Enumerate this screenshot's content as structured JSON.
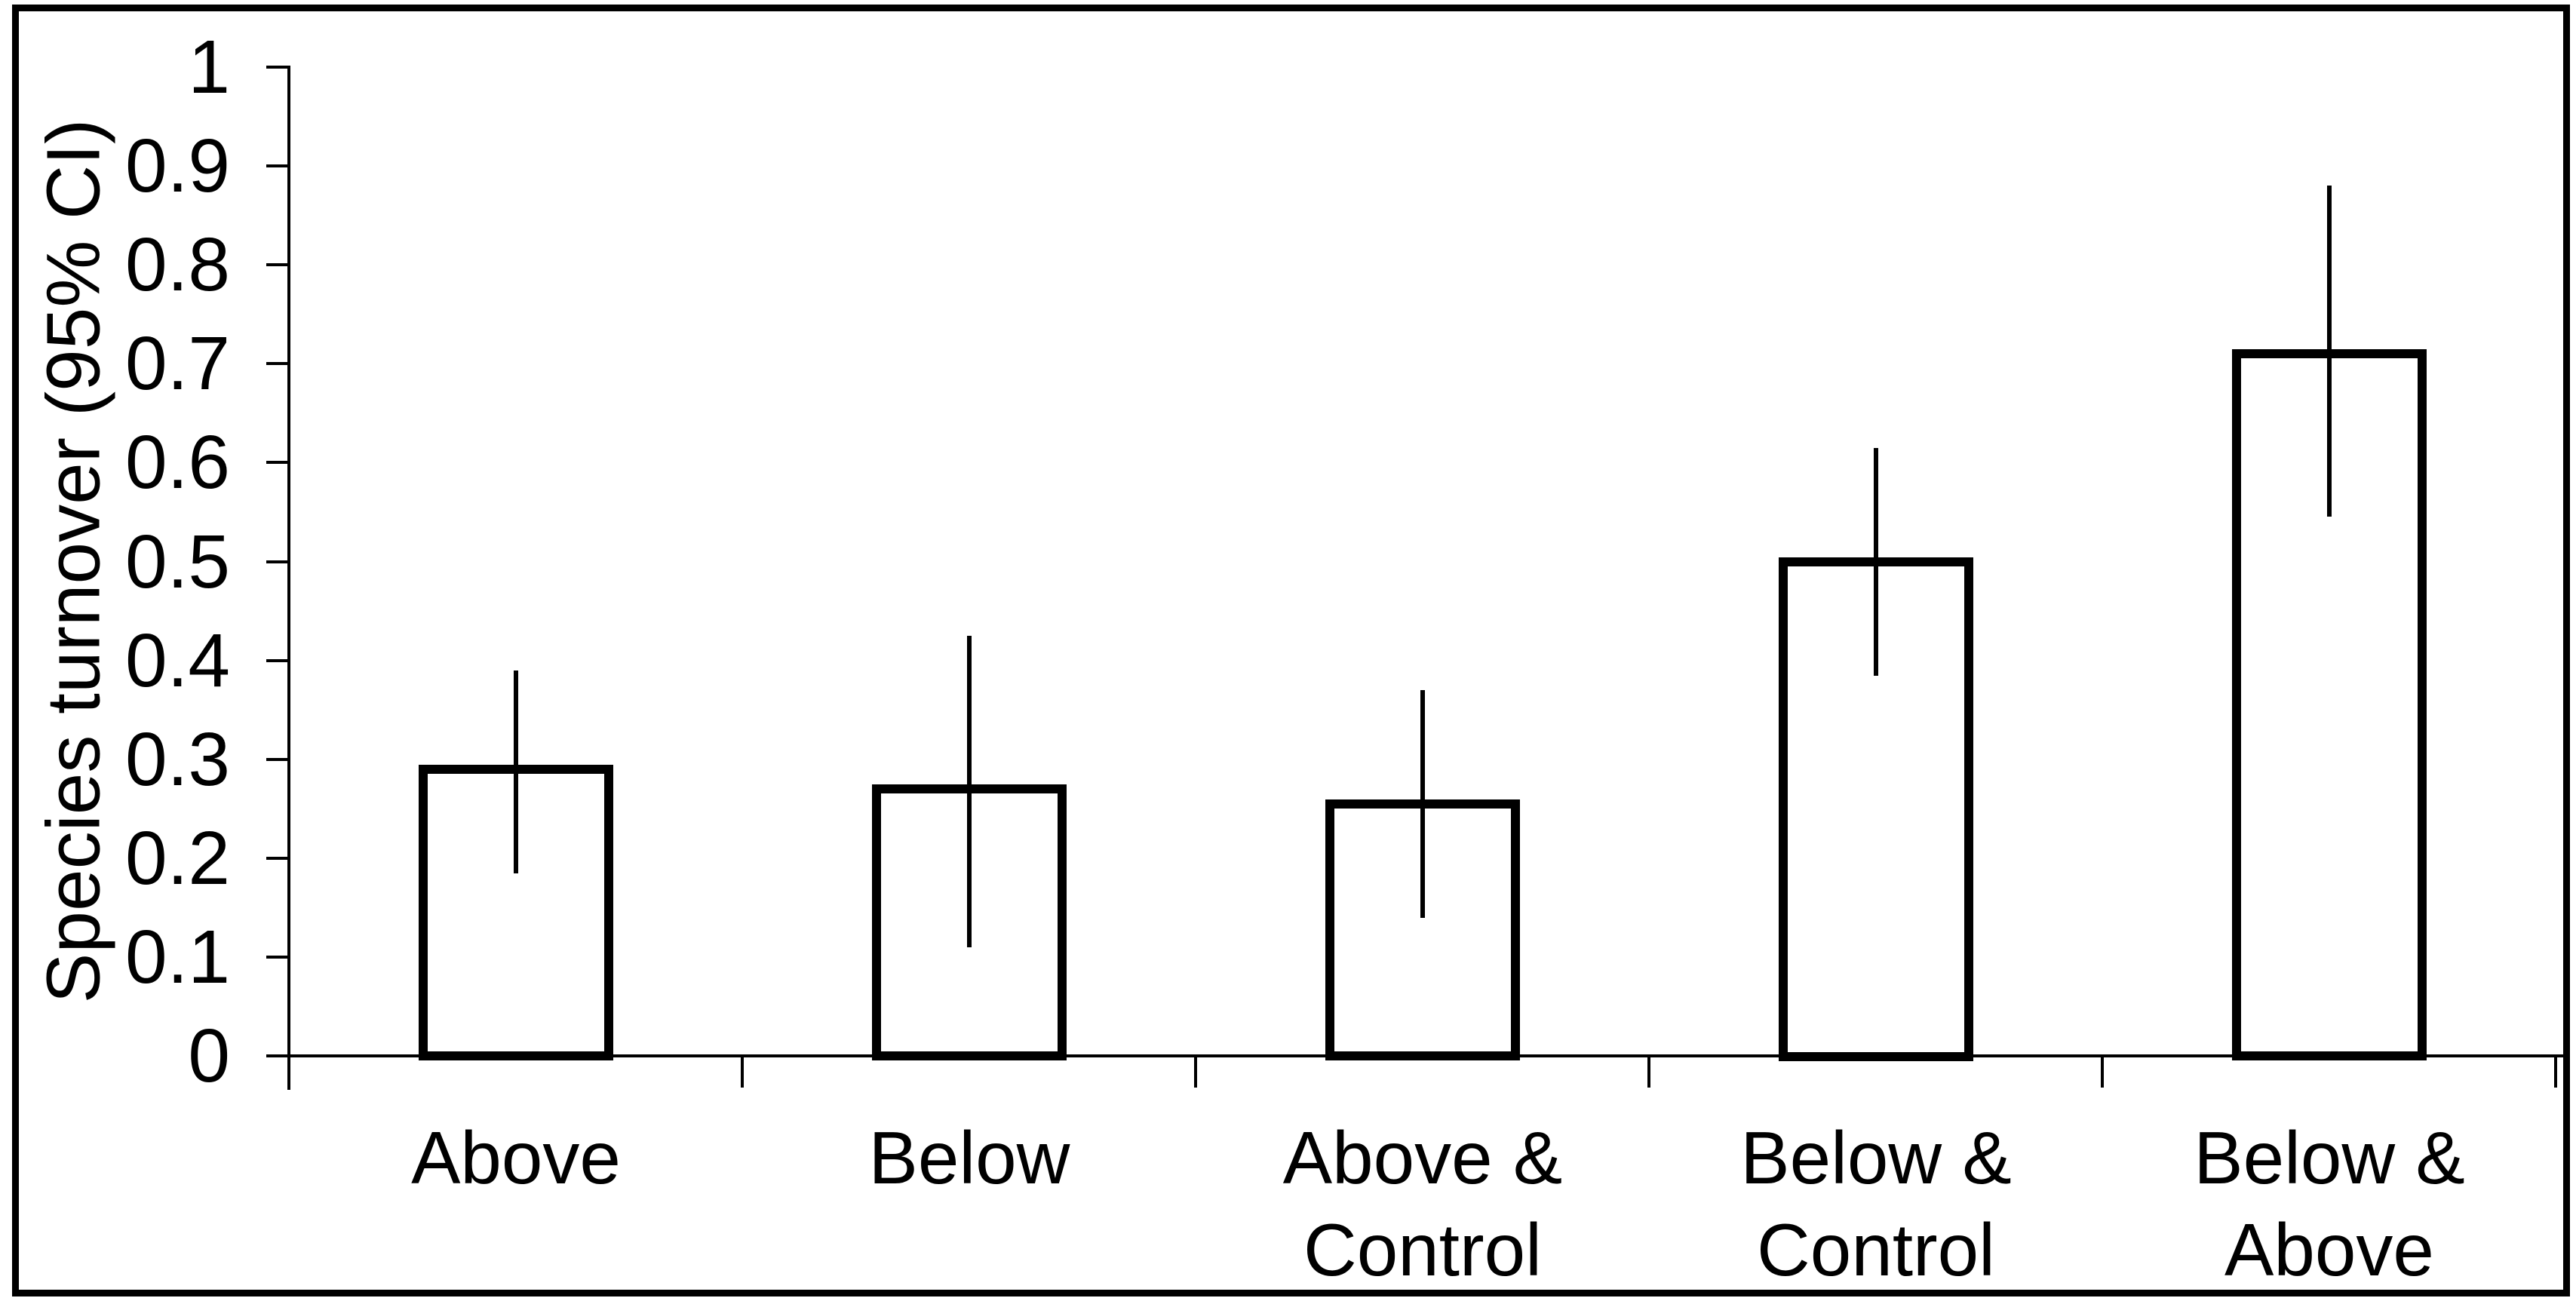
{
  "figure": {
    "background": "#ffffff",
    "border_color": "#000000",
    "text_color": "#000000"
  },
  "chart_data": {
    "type": "bar",
    "title": "",
    "xlabel": "",
    "ylabel": "Species turnover (95% CI)",
    "ylim": [
      0,
      1
    ],
    "ytick_values": [
      0,
      0.1,
      0.2,
      0.3,
      0.4,
      0.5,
      0.6,
      0.7,
      0.8,
      0.9,
      1
    ],
    "ytick_labels": [
      "0",
      "0.1",
      "0.2",
      "0.3",
      "0.4",
      "0.5",
      "0.6",
      "0.7",
      "0.8",
      "0.9",
      "1"
    ],
    "categories": [
      "Above",
      "Below",
      "Above & Control",
      "Below & Control",
      "Below & Above"
    ],
    "category_label_lines": [
      [
        "Above"
      ],
      [
        "Below"
      ],
      [
        "Above &",
        "Control"
      ],
      [
        "Below &",
        "Control"
      ],
      [
        "Below &",
        "Above"
      ]
    ],
    "values": [
      0.29,
      0.27,
      0.255,
      0.5,
      0.71
    ],
    "error_bars": true,
    "ci_low": [
      0.185,
      0.11,
      0.14,
      0.385,
      0.545
    ],
    "ci_high": [
      0.39,
      0.425,
      0.37,
      0.615,
      0.88
    ],
    "bar_fill": "#ffffff",
    "bar_border": "#000000",
    "axis_color": "#000000",
    "grid": false,
    "legend": false
  }
}
